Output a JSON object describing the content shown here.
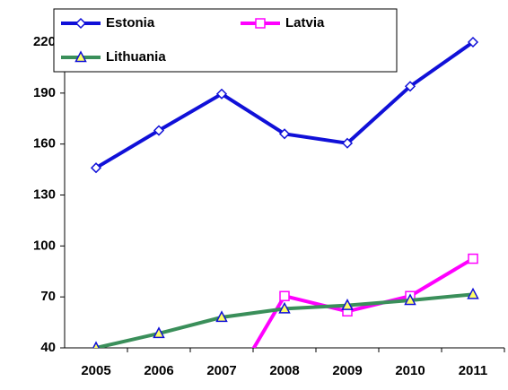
{
  "chart_data": {
    "type": "line",
    "categories": [
      "2005",
      "2006",
      "2007",
      "2008",
      "2009",
      "2010",
      "2011"
    ],
    "series": [
      {
        "name": "Estonia",
        "color": "#1010d8",
        "marker": "diamond",
        "marker_fill": "#ffffff",
        "values": [
          146,
          168,
          189.5,
          166,
          160.5,
          194,
          220
        ]
      },
      {
        "name": "Latvia",
        "color": "#ff00ff",
        "marker": "square",
        "marker_fill": "#ffffff",
        "values": [
          null,
          null,
          8,
          70.5,
          61.5,
          70.5,
          92.5
        ]
      },
      {
        "name": "Lithuania",
        "color": "#3a8f5a",
        "marker": "triangle",
        "marker_fill": "#ffff66",
        "values": [
          40,
          48.5,
          58,
          63,
          65,
          68,
          71.5
        ]
      }
    ],
    "ylim": [
      40,
      220
    ],
    "yticks": [
      40,
      70,
      100,
      130,
      160,
      190,
      220
    ],
    "grid": false,
    "legend": "top-left"
  }
}
